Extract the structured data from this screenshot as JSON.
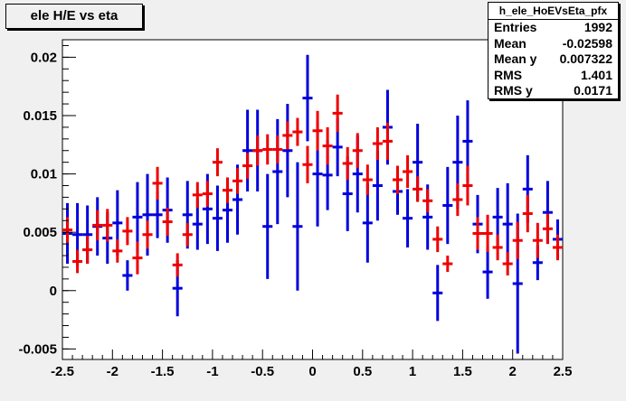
{
  "title": "ele H/E vs eta",
  "stats": {
    "name": "h_ele_HoEVsEta_pfx",
    "rows": [
      {
        "label": "Entries",
        "value": "1992"
      },
      {
        "label": "Mean",
        "value": "-0.02598"
      },
      {
        "label": "Mean y",
        "value": "0.007322"
      },
      {
        "label": "RMS",
        "value": "1.401"
      },
      {
        "label": "RMS y",
        "value": "0.0171"
      }
    ]
  },
  "chart_data": {
    "type": "scatter",
    "title": "ele H/E vs eta",
    "xlabel": "",
    "ylabel": "",
    "xlim": [
      -2.5,
      2.5
    ],
    "ylim": [
      -0.0059,
      0.0215
    ],
    "x_ticks": [
      -2.5,
      -2,
      -1.5,
      -1,
      -0.5,
      0,
      0.5,
      1,
      1.5,
      2,
      2.5
    ],
    "x_tick_labels": [
      "-2.5",
      "-2",
      "-1.5",
      "-1",
      "-0.5",
      "0",
      "0.5",
      "1",
      "1.5",
      "2",
      "2.5"
    ],
    "y_ticks": [
      -0.005,
      0,
      0.005,
      0.01,
      0.015,
      0.02
    ],
    "y_tick_labels": [
      "-0.005",
      "0",
      "0.005",
      "0.01",
      "0.015",
      "0.02"
    ],
    "bin_half_width": 0.05,
    "colors": {
      "blue": "#0000dd",
      "red": "#ee0000"
    },
    "series": [
      {
        "color": "blue",
        "x": [
          -2.45,
          -2.25,
          -2.05,
          -1.85,
          -1.65,
          -1.45,
          -1.25,
          -1.05,
          -0.85,
          -0.65,
          -0.45,
          -0.25,
          -0.05,
          0.15,
          0.35,
          0.55,
          0.75,
          0.95,
          1.15,
          1.35,
          1.55,
          1.75,
          1.95,
          2.15,
          2.35
        ],
        "y": [
          0.0049,
          0.0048,
          0.0045,
          0.0013,
          0.0065,
          0.0069,
          0.0065,
          0.007,
          0.0069,
          0.012,
          0.0055,
          0.012,
          0.0165,
          0.0099,
          0.0083,
          0.0058,
          0.014,
          0.0062,
          0.0063,
          0.0073,
          0.0128,
          0.0016,
          0.0057,
          0.0087,
          0.0067
        ],
        "err": [
          0.0026,
          0.0025,
          0.0022,
          0.0013,
          0.0035,
          0.0028,
          0.0029,
          0.003,
          0.0028,
          0.0035,
          0.0045,
          0.004,
          0.0037,
          0.003,
          0.0032,
          0.0034,
          0.0032,
          0.0025,
          0.0028,
          0.0033,
          0.0035,
          0.0023,
          0.0035,
          0.0029,
          0.0027
        ]
      },
      {
        "color": "blue",
        "x": [
          -2.35,
          -2.15,
          -1.95,
          -1.75,
          -1.55,
          -1.35,
          -1.15,
          -0.95,
          -0.75,
          -0.55,
          -0.35,
          -0.15,
          0.05,
          0.25,
          0.45,
          0.65,
          0.85,
          1.05,
          1.25,
          1.45,
          1.65,
          1.85,
          2.05,
          2.25,
          2.45
        ],
        "y": [
          0.0048,
          0.0055,
          0.0058,
          0.0063,
          0.0065,
          0.0002,
          0.0057,
          0.0062,
          0.0078,
          0.012,
          0.0102,
          0.0055,
          0.01,
          0.0123,
          0.01,
          0.009,
          0.0085,
          0.011,
          -0.0002,
          0.011,
          0.0057,
          0.0063,
          0.0006,
          0.0024,
          0.0044
        ],
        "err": [
          0.0027,
          0.0025,
          0.0028,
          0.003,
          0.002,
          0.0024,
          0.0022,
          0.0028,
          0.003,
          0.0035,
          0.0045,
          0.0055,
          0.0045,
          0.0025,
          0.0033,
          0.003,
          0.002,
          0.0033,
          0.0024,
          0.004,
          0.0025,
          0.0025,
          0.006,
          0.0015,
          0.0017
        ]
      },
      {
        "color": "red",
        "x": [
          -2.45,
          -2.35,
          -2.25,
          -2.15,
          -2.05,
          -1.95,
          -1.85,
          -1.75,
          -1.65,
          -1.55,
          -1.45,
          -1.35,
          -1.25,
          -1.15,
          -1.05,
          -0.95,
          -0.85,
          -0.75,
          -0.65,
          -0.55,
          -0.45,
          -0.35,
          -0.25,
          -0.15,
          -0.05,
          0.05,
          0.15,
          0.25,
          0.35,
          0.45,
          0.55,
          0.65,
          0.75,
          0.85,
          0.95,
          1.05,
          1.15,
          1.25,
          1.35,
          1.45,
          1.55,
          1.65,
          1.75,
          1.85,
          1.95,
          2.05,
          2.15,
          2.25,
          2.35,
          2.45
        ],
        "y": [
          0.0052,
          0.0025,
          0.0035,
          0.0056,
          0.0056,
          0.0034,
          0.0051,
          0.0028,
          0.0048,
          0.0092,
          0.0059,
          0.0022,
          0.0048,
          0.0082,
          0.0083,
          0.011,
          0.0086,
          0.0094,
          0.0107,
          0.012,
          0.0121,
          0.0121,
          0.0133,
          0.0136,
          0.0108,
          0.0137,
          0.0124,
          0.0152,
          0.0109,
          0.012,
          0.0095,
          0.0126,
          0.0128,
          0.0095,
          0.0102,
          0.0087,
          0.0077,
          0.0044,
          0.0023,
          0.0078,
          0.009,
          0.0049,
          0.0049,
          0.0037,
          0.0023,
          0.0043,
          0.0066,
          0.0043,
          0.0053,
          0.0037
        ],
        "err": [
          0.0011,
          0.001,
          0.0012,
          0.0013,
          0.0014,
          0.001,
          0.0012,
          0.0014,
          0.0012,
          0.0014,
          0.0012,
          0.001,
          0.001,
          0.0011,
          0.0011,
          0.0012,
          0.0011,
          0.0011,
          0.0011,
          0.0013,
          0.0013,
          0.0012,
          0.0012,
          0.0012,
          0.0016,
          0.0017,
          0.0016,
          0.0016,
          0.0014,
          0.0015,
          0.0013,
          0.0014,
          0.0016,
          0.0012,
          0.0014,
          0.0011,
          0.001,
          0.0011,
          0.0007,
          0.0014,
          0.0017,
          0.0014,
          0.0016,
          0.0011,
          0.001,
          0.0016,
          0.0016,
          0.0015,
          0.0013,
          0.0011
        ]
      }
    ]
  }
}
